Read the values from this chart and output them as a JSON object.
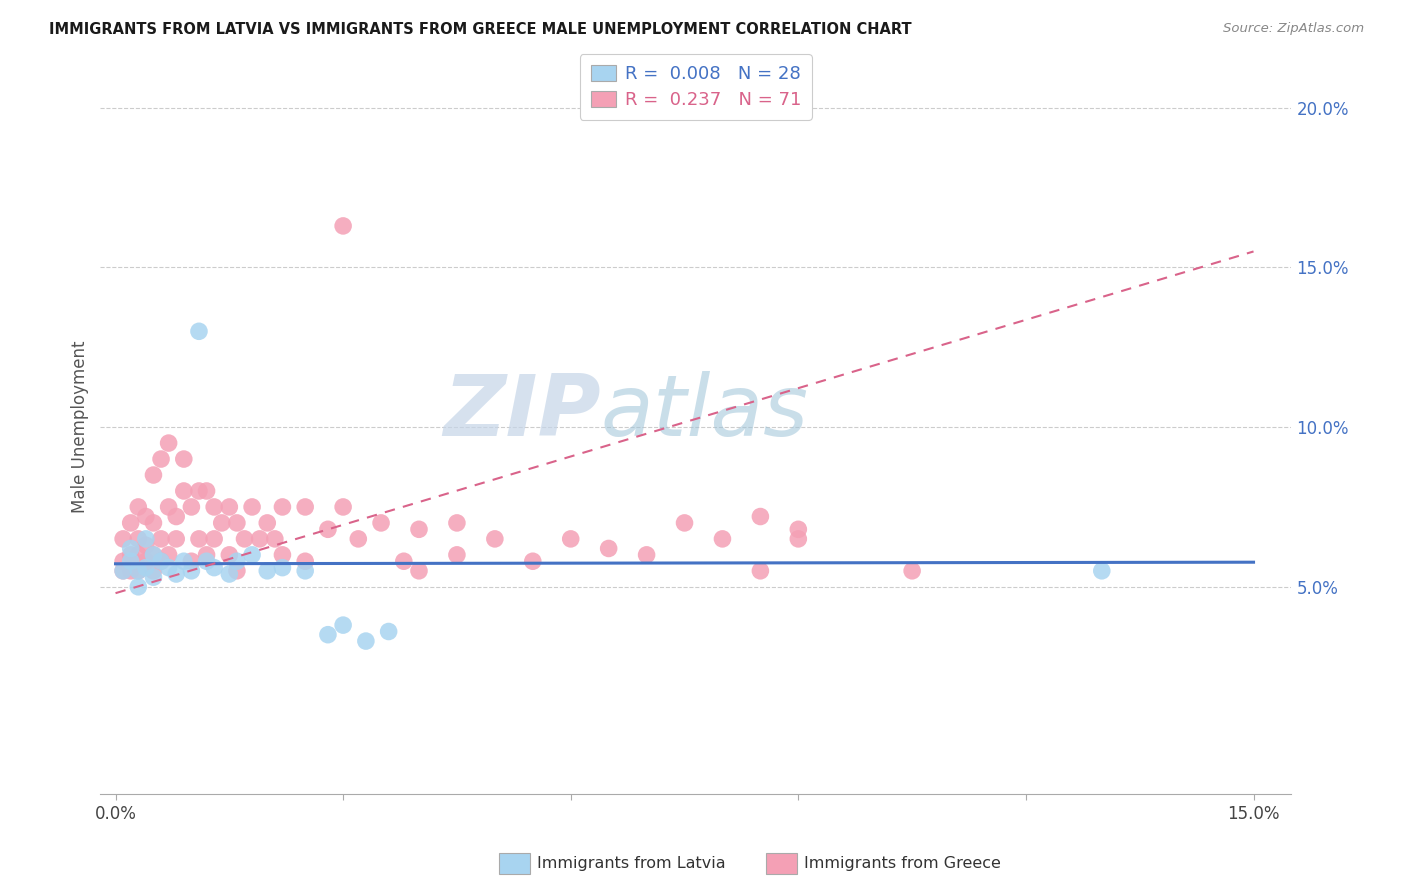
{
  "title": "IMMIGRANTS FROM LATVIA VS IMMIGRANTS FROM GREECE MALE UNEMPLOYMENT CORRELATION CHART",
  "source": "Source: ZipAtlas.com",
  "ylabel": "Male Unemployment",
  "color_latvia": "#a8d4f0",
  "color_greece": "#f4a0b5",
  "color_latvia_line": "#4472c4",
  "color_greece_line": "#d9638a",
  "watermark_zip": "ZIP",
  "watermark_atlas": "atlas",
  "xlim": [
    -0.002,
    0.155
  ],
  "ylim": [
    -0.015,
    0.215
  ],
  "ytick_vals": [
    0.05,
    0.1,
    0.15,
    0.2
  ],
  "ytick_labels": [
    "5.0%",
    "10.0%",
    "15.0%",
    "20.0%"
  ],
  "xtick_vals": [
    0.0,
    0.03,
    0.06,
    0.09,
    0.12,
    0.15
  ],
  "xtick_show": [
    true,
    false,
    false,
    false,
    false,
    true
  ],
  "xtick_labels_show": [
    "0.0%",
    "",
    "",
    "",
    "",
    "15.0%"
  ],
  "legend_lat_r": "R = ",
  "legend_lat_r_val": "0.008",
  "legend_lat_n": "  N = ",
  "legend_lat_n_val": "28",
  "legend_gre_r": "R = ",
  "legend_gre_r_val": "0.237",
  "legend_gre_n": "  N = ",
  "legend_gre_n_val": "71",
  "lat_line_y0": 0.0572,
  "lat_line_y1": 0.0577,
  "gre_line_y0": 0.048,
  "gre_line_y1": 0.155,
  "lat_x": [
    0.001,
    0.002,
    0.002,
    0.003,
    0.003,
    0.004,
    0.004,
    0.005,
    0.005,
    0.006,
    0.007,
    0.008,
    0.009,
    0.01,
    0.011,
    0.012,
    0.013,
    0.015,
    0.016,
    0.018,
    0.02,
    0.022,
    0.025,
    0.028,
    0.03,
    0.033,
    0.036,
    0.13
  ],
  "lat_y": [
    0.055,
    0.058,
    0.062,
    0.055,
    0.05,
    0.056,
    0.065,
    0.053,
    0.06,
    0.058,
    0.056,
    0.054,
    0.058,
    0.055,
    0.13,
    0.058,
    0.056,
    0.054,
    0.058,
    0.06,
    0.055,
    0.056,
    0.055,
    0.035,
    0.038,
    0.033,
    0.036,
    0.055
  ],
  "gre_x": [
    0.001,
    0.001,
    0.001,
    0.002,
    0.002,
    0.002,
    0.003,
    0.003,
    0.003,
    0.003,
    0.004,
    0.004,
    0.004,
    0.005,
    0.005,
    0.005,
    0.005,
    0.006,
    0.006,
    0.006,
    0.007,
    0.007,
    0.007,
    0.008,
    0.008,
    0.009,
    0.009,
    0.01,
    0.01,
    0.011,
    0.011,
    0.012,
    0.012,
    0.013,
    0.013,
    0.014,
    0.015,
    0.015,
    0.016,
    0.016,
    0.017,
    0.018,
    0.019,
    0.02,
    0.021,
    0.022,
    0.022,
    0.025,
    0.025,
    0.028,
    0.03,
    0.032,
    0.035,
    0.038,
    0.04,
    0.04,
    0.045,
    0.045,
    0.05,
    0.055,
    0.06,
    0.065,
    0.07,
    0.075,
    0.08,
    0.085,
    0.085,
    0.09,
    0.09,
    0.105,
    0.03
  ],
  "gre_y": [
    0.055,
    0.058,
    0.065,
    0.055,
    0.06,
    0.07,
    0.055,
    0.06,
    0.065,
    0.075,
    0.058,
    0.063,
    0.072,
    0.055,
    0.06,
    0.07,
    0.085,
    0.058,
    0.065,
    0.09,
    0.06,
    0.075,
    0.095,
    0.065,
    0.072,
    0.08,
    0.09,
    0.058,
    0.075,
    0.065,
    0.08,
    0.06,
    0.08,
    0.065,
    0.075,
    0.07,
    0.06,
    0.075,
    0.055,
    0.07,
    0.065,
    0.075,
    0.065,
    0.07,
    0.065,
    0.06,
    0.075,
    0.058,
    0.075,
    0.068,
    0.075,
    0.065,
    0.07,
    0.058,
    0.055,
    0.068,
    0.06,
    0.07,
    0.065,
    0.058,
    0.065,
    0.062,
    0.06,
    0.07,
    0.065,
    0.055,
    0.072,
    0.065,
    0.068,
    0.055,
    0.163
  ]
}
